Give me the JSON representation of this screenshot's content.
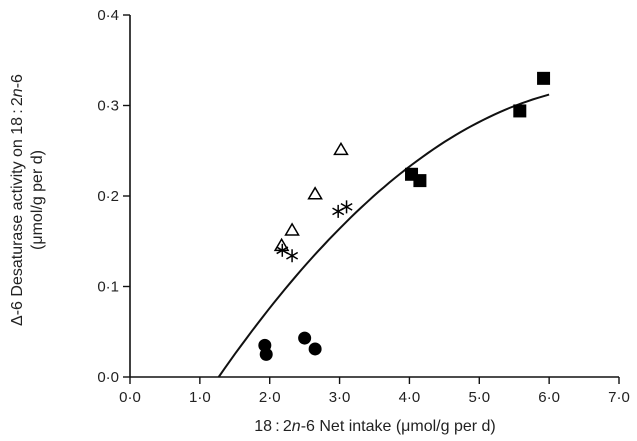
{
  "chart_data": {
    "type": "scatter",
    "title": "",
    "xlabel_parts": [
      "18 : 2",
      "n",
      "-6 Net intake (μmol/g per d)"
    ],
    "ylabel_line1_parts": [
      "Δ-6 Desaturase activity on 18 : 2",
      "n",
      "-6"
    ],
    "ylabel_line2": "(μmol/g per d)",
    "xlim": [
      0,
      7
    ],
    "ylim": [
      0,
      0.4
    ],
    "x_ticks": [
      0,
      1,
      2,
      3,
      4,
      5,
      6,
      7
    ],
    "x_tick_labels": [
      "0·0",
      "1·0",
      "2·0",
      "3·0",
      "4·0",
      "5·0",
      "6·0",
      "7·0"
    ],
    "y_ticks": [
      0,
      0.1,
      0.2,
      0.3,
      0.4
    ],
    "y_tick_labels": [
      "0·0",
      "0·1",
      "0·2",
      "0·3",
      "0·4"
    ],
    "grid": false,
    "series": [
      {
        "marker": "filled-circle",
        "color": "#000000",
        "points": [
          [
            1.93,
            0.035
          ],
          [
            1.95,
            0.025
          ],
          [
            2.5,
            0.043
          ],
          [
            2.65,
            0.031
          ]
        ]
      },
      {
        "marker": "open-triangle",
        "color": "#000000",
        "points": [
          [
            2.17,
            0.145
          ],
          [
            2.32,
            0.162
          ],
          [
            2.65,
            0.202
          ],
          [
            3.02,
            0.251
          ]
        ]
      },
      {
        "marker": "asterisk",
        "color": "#000000",
        "points": [
          [
            2.18,
            0.14
          ],
          [
            2.32,
            0.134
          ],
          [
            2.98,
            0.183
          ],
          [
            3.1,
            0.188
          ]
        ]
      },
      {
        "marker": "filled-square",
        "color": "#000000",
        "points": [
          [
            4.03,
            0.224
          ],
          [
            4.15,
            0.217
          ],
          [
            5.58,
            0.294
          ],
          [
            5.92,
            0.33
          ]
        ]
      }
    ],
    "fit_curve": {
      "type": "quadratic",
      "points": [
        [
          1.27,
          0.0
        ],
        [
          2.0,
          0.078
        ],
        [
          3.0,
          0.164
        ],
        [
          4.0,
          0.231
        ],
        [
          5.0,
          0.281
        ],
        [
          6.0,
          0.312
        ]
      ]
    }
  }
}
